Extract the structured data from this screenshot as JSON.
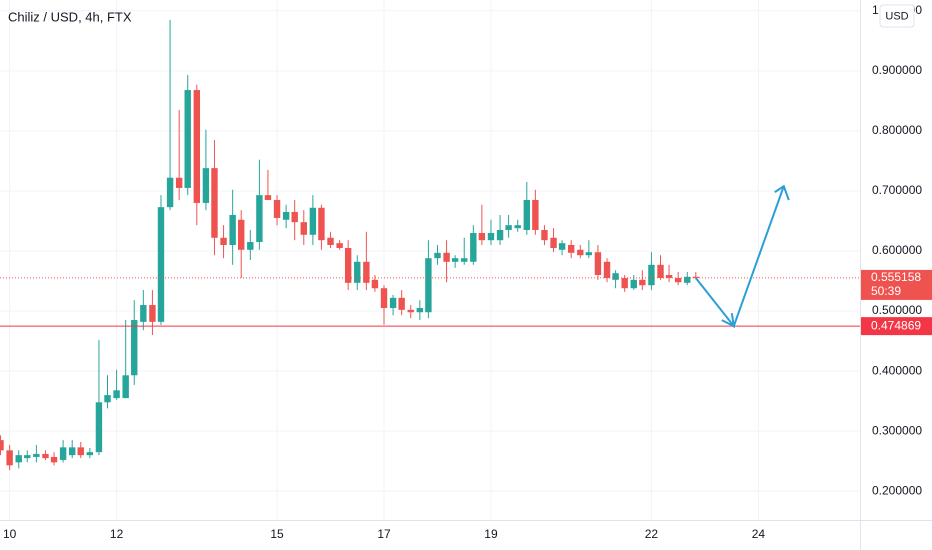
{
  "chart_data": {
    "type": "candlestick",
    "title": "Chiliz / USD, 4h, FTX",
    "currency": "USD",
    "up_color": "#26a69a",
    "down_color": "#ef5350",
    "grid": true,
    "xlim": [
      9.82,
      25.9
    ],
    "xticks": [
      10,
      12,
      15,
      17,
      19,
      22,
      24
    ],
    "ylim": [
      0.152,
      1.018
    ],
    "yticks": [
      {
        "value": 0.2,
        "label": "0.200000"
      },
      {
        "value": 0.3,
        "label": "0.300000"
      },
      {
        "value": 0.4,
        "label": "0.400000"
      },
      {
        "value": 0.5,
        "label": "0.500000"
      },
      {
        "value": 0.6,
        "label": "0.600000"
      },
      {
        "value": 0.7,
        "label": "0.700000"
      },
      {
        "value": 0.8,
        "label": "0.800000"
      },
      {
        "value": 0.9,
        "label": "0.900000"
      },
      {
        "value": 1.0,
        "label": "1.000000"
      }
    ],
    "x": [
      9.83,
      10,
      10.17,
      10.33,
      10.5,
      10.67,
      10.83,
      11,
      11.17,
      11.33,
      11.5,
      11.67,
      11.83,
      12,
      12.17,
      12.33,
      12.5,
      12.67,
      12.83,
      13,
      13.17,
      13.33,
      13.5,
      13.67,
      13.83,
      14,
      14.17,
      14.33,
      14.5,
      14.67,
      14.83,
      15,
      15.17,
      15.33,
      15.5,
      15.67,
      15.83,
      16,
      16.17,
      16.33,
      16.5,
      16.67,
      16.83,
      17,
      17.17,
      17.33,
      17.5,
      17.67,
      17.83,
      18,
      18.17,
      18.33,
      18.5,
      18.67,
      18.83,
      19,
      19.17,
      19.33,
      19.5,
      19.67,
      19.83,
      20,
      20.17,
      20.33,
      20.5,
      20.67,
      20.83,
      21,
      21.17,
      21.33,
      21.5,
      21.67,
      21.83,
      22,
      22.17,
      22.33,
      22.5,
      22.67,
      22.83
    ],
    "open": [
      0.285,
      0.268,
      0.248,
      0.255,
      0.257,
      0.262,
      0.257,
      0.252,
      0.26,
      0.273,
      0.26,
      0.265,
      0.348,
      0.355,
      0.355,
      0.393,
      0.482,
      0.51,
      0.482,
      0.673,
      0.722,
      0.705,
      0.868,
      0.68,
      0.738,
      0.622,
      0.61,
      0.652,
      0.602,
      0.615,
      0.693,
      0.685,
      0.652,
      0.665,
      0.648,
      0.627,
      0.672,
      0.622,
      0.613,
      0.605,
      0.547,
      0.582,
      0.552,
      0.538,
      0.505,
      0.522,
      0.502,
      0.498,
      0.498,
      0.588,
      0.597,
      0.582,
      0.582,
      0.582,
      0.63,
      0.618,
      0.618,
      0.635,
      0.638,
      0.635,
      0.685,
      0.635,
      0.622,
      0.602,
      0.61,
      0.602,
      0.593,
      0.598,
      0.582,
      0.552,
      0.555,
      0.538,
      0.552,
      0.543,
      0.577,
      0.56,
      0.555,
      0.547,
      0.557
    ],
    "high": [
      0.293,
      0.277,
      0.268,
      0.268,
      0.277,
      0.268,
      0.265,
      0.285,
      0.285,
      0.282,
      0.272,
      0.452,
      0.393,
      0.402,
      0.485,
      0.518,
      0.535,
      0.535,
      0.693,
      0.985,
      0.835,
      0.893,
      0.877,
      0.802,
      0.785,
      0.643,
      0.702,
      0.668,
      0.635,
      0.752,
      0.735,
      0.693,
      0.677,
      0.685,
      0.668,
      0.693,
      0.677,
      0.632,
      0.618,
      0.618,
      0.593,
      0.632,
      0.56,
      0.543,
      0.527,
      0.535,
      0.51,
      0.518,
      0.618,
      0.61,
      0.618,
      0.593,
      0.622,
      0.643,
      0.677,
      0.652,
      0.66,
      0.66,
      0.652,
      0.715,
      0.702,
      0.643,
      0.638,
      0.618,
      0.618,
      0.61,
      0.618,
      0.61,
      0.588,
      0.568,
      0.56,
      0.56,
      0.568,
      0.598,
      0.593,
      0.577,
      0.565,
      0.565,
      0.565
    ],
    "low": [
      0.26,
      0.235,
      0.238,
      0.248,
      0.248,
      0.252,
      0.243,
      0.248,
      0.255,
      0.255,
      0.255,
      0.26,
      0.338,
      0.352,
      0.355,
      0.377,
      0.468,
      0.46,
      0.477,
      0.668,
      0.685,
      0.693,
      0.643,
      0.668,
      0.593,
      0.588,
      0.577,
      0.555,
      0.585,
      0.602,
      0.685,
      0.643,
      0.638,
      0.618,
      0.61,
      0.61,
      0.602,
      0.605,
      0.602,
      0.535,
      0.535,
      0.535,
      0.532,
      0.477,
      0.493,
      0.493,
      0.488,
      0.485,
      0.488,
      0.577,
      0.548,
      0.572,
      0.577,
      0.577,
      0.61,
      0.61,
      0.61,
      0.622,
      0.632,
      0.627,
      0.627,
      0.61,
      0.598,
      0.593,
      0.588,
      0.588,
      0.588,
      0.552,
      0.548,
      0.538,
      0.532,
      0.535,
      0.535,
      0.535,
      0.552,
      0.548,
      0.543,
      0.543,
      0.553
    ],
    "close": [
      0.268,
      0.243,
      0.26,
      0.26,
      0.262,
      0.255,
      0.248,
      0.273,
      0.273,
      0.26,
      0.265,
      0.348,
      0.36,
      0.368,
      0.393,
      0.485,
      0.51,
      0.482,
      0.673,
      0.722,
      0.705,
      0.868,
      0.68,
      0.738,
      0.622,
      0.61,
      0.66,
      0.602,
      0.615,
      0.693,
      0.685,
      0.655,
      0.665,
      0.648,
      0.627,
      0.672,
      0.618,
      0.61,
      0.605,
      0.547,
      0.582,
      0.547,
      0.538,
      0.505,
      0.522,
      0.502,
      0.498,
      0.505,
      0.588,
      0.597,
      0.582,
      0.588,
      0.588,
      0.63,
      0.618,
      0.63,
      0.635,
      0.643,
      0.643,
      0.685,
      0.635,
      0.618,
      0.605,
      0.613,
      0.597,
      0.593,
      0.598,
      0.56,
      0.555,
      0.563,
      0.538,
      0.552,
      0.543,
      0.577,
      0.555,
      0.555,
      0.548,
      0.557,
      0.555
    ],
    "last_price": 0.555158,
    "countdown": "50:39",
    "support_level": 0.474869,
    "support_color": "#f23645",
    "arrow_color": "#2a9fd6"
  }
}
